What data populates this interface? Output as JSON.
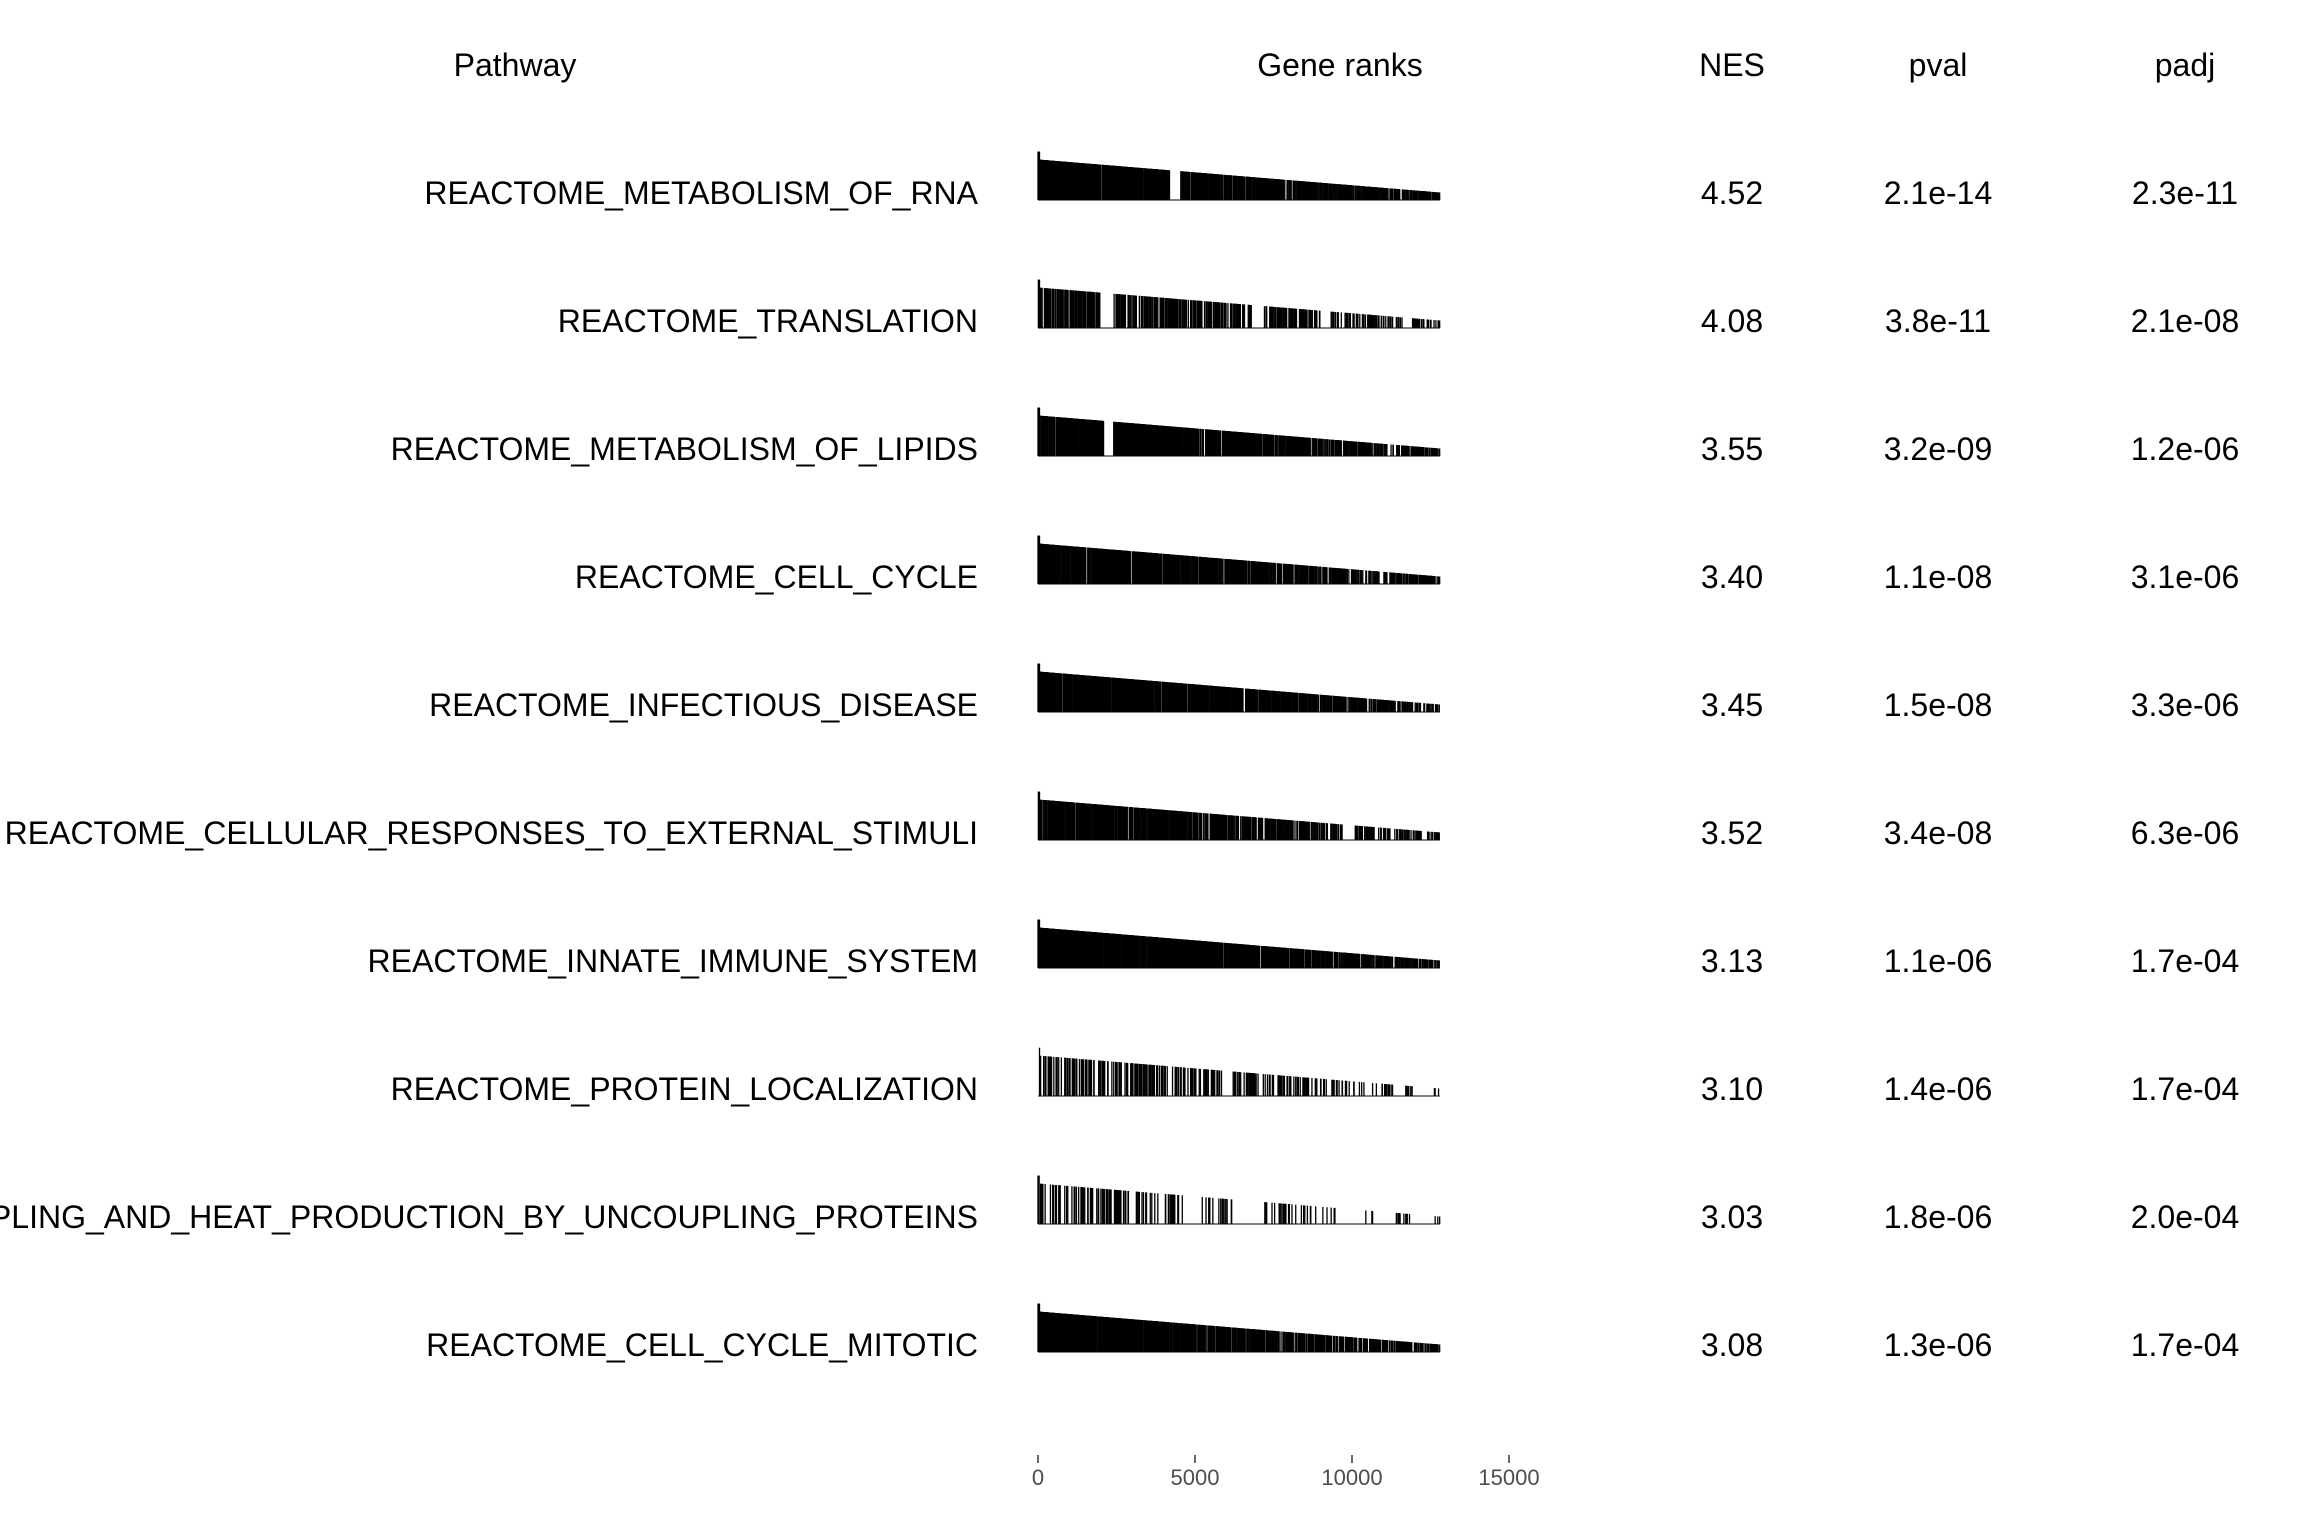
{
  "headers": {
    "pathway": "Pathway",
    "gene_ranks": "Gene ranks",
    "nes": "NES",
    "pval": "pval",
    "padj": "padj"
  },
  "chart_data": {
    "type": "table",
    "columns": [
      "Pathway",
      "Gene ranks",
      "NES",
      "pval",
      "padj"
    ],
    "x_axis": {
      "ticks": [
        0,
        5000,
        10000,
        15000
      ],
      "xlim": [
        0,
        12800
      ]
    },
    "rows": [
      {
        "pathway": "REACTOME_METABOLISM_OF_RNA",
        "nes": "4.52",
        "pval": "2.1e-14",
        "padj": "2.3e-11",
        "density": 0.95,
        "gaps": [
          [
            4200,
            4500
          ]
        ]
      },
      {
        "pathway": "REACTOME_TRANSLATION",
        "nes": "4.08",
        "pval": "3.8e-11",
        "padj": "2.1e-08",
        "density": 0.55,
        "gaps": [
          [
            2000,
            2400
          ],
          [
            6800,
            7200
          ],
          [
            9000,
            9300
          ],
          [
            11600,
            11900
          ]
        ]
      },
      {
        "pathway": "REACTOME_METABOLISM_OF_LIPIDS",
        "nes": "3.55",
        "pval": "3.2e-09",
        "padj": "1.2e-06",
        "density": 0.9,
        "gaps": [
          [
            2100,
            2400
          ]
        ]
      },
      {
        "pathway": "REACTOME_CELL_CYCLE",
        "nes": "3.40",
        "pval": "1.1e-08",
        "padj": "3.1e-06",
        "density": 0.85,
        "gaps": []
      },
      {
        "pathway": "REACTOME_INFECTIOUS_DISEASE",
        "nes": "3.45",
        "pval": "1.5e-08",
        "padj": "3.3e-06",
        "density": 0.9,
        "gaps": []
      },
      {
        "pathway": "REACTOME_CELLULAR_RESPONSES_TO_EXTERNAL_STIMULI",
        "nes": "3.52",
        "pval": "3.4e-08",
        "padj": "6.3e-06",
        "density": 0.7,
        "gaps": [
          [
            9700,
            10100
          ]
        ]
      },
      {
        "pathway": "REACTOME_INNATE_IMMUNE_SYSTEM",
        "nes": "3.13",
        "pval": "1.1e-06",
        "padj": "1.7e-04",
        "density": 1.0,
        "gaps": []
      },
      {
        "pathway": "REACTOME_PROTEIN_LOCALIZATION",
        "nes": "3.10",
        "pval": "1.4e-06",
        "padj": "1.7e-04",
        "density": 0.35,
        "gaps": [
          [
            5900,
            6200
          ],
          [
            10400,
            10600
          ],
          [
            11300,
            11700
          ],
          [
            12000,
            12600
          ]
        ]
      },
      {
        "pathway": "REACTOME_MITOCHONDRIAL_UNCOUPLING_AND_HEAT_PRODUCTION_BY_UNCOUPLING_PROTEINS",
        "display": "PLING_AND_HEAT_PRODUCTION_BY_UNCOUPLING_PROTEINS",
        "nes": "3.03",
        "pval": "1.8e-06",
        "padj": "2.0e-04",
        "density": 0.25,
        "gaps": [
          [
            4700,
            5200
          ],
          [
            6200,
            7200
          ],
          [
            9600,
            10400
          ],
          [
            10700,
            11400
          ],
          [
            12000,
            12600
          ]
        ]
      },
      {
        "pathway": "REACTOME_CELL_CYCLE_MITOTIC",
        "nes": "3.08",
        "pval": "1.3e-06",
        "padj": "1.7e-04",
        "density": 0.85,
        "gaps": []
      }
    ]
  }
}
